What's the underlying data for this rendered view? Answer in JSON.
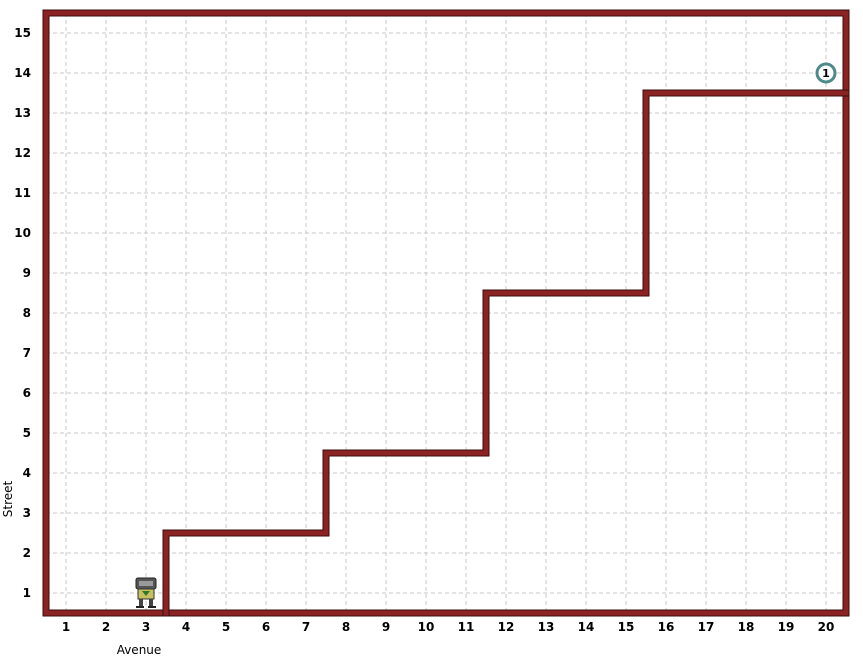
{
  "world": {
    "avenues": 20,
    "streets": 15,
    "axis_labels": {
      "x": "Avenue",
      "y": "Street"
    },
    "x_ticks": [
      "1",
      "2",
      "3",
      "4",
      "5",
      "6",
      "7",
      "8",
      "9",
      "10",
      "11",
      "12",
      "13",
      "14",
      "15",
      "16",
      "17",
      "18",
      "19",
      "20"
    ],
    "y_ticks": [
      "1",
      "2",
      "3",
      "4",
      "5",
      "6",
      "7",
      "8",
      "9",
      "10",
      "11",
      "12",
      "13",
      "14",
      "15"
    ],
    "walls": [
      [
        [
          3.5,
          0.5
        ],
        [
          3.5,
          2.5
        ],
        [
          7.5,
          2.5
        ],
        [
          7.5,
          4.5
        ],
        [
          11.5,
          4.5
        ],
        [
          11.5,
          8.5
        ],
        [
          15.5,
          8.5
        ],
        [
          15.5,
          13.5
        ],
        [
          20.5,
          13.5
        ]
      ]
    ],
    "robot": {
      "avenue": 3,
      "street": 1,
      "facing": "north"
    },
    "beepers": [
      {
        "avenue": 20,
        "street": 14,
        "count": "1"
      }
    ],
    "colors": {
      "wall": "#8b2323",
      "wall_edge": "#3a0e0e",
      "grid": "#c8c8c8",
      "beeper_ring": "#4e8a8a",
      "robot_body": "#888888"
    }
  }
}
